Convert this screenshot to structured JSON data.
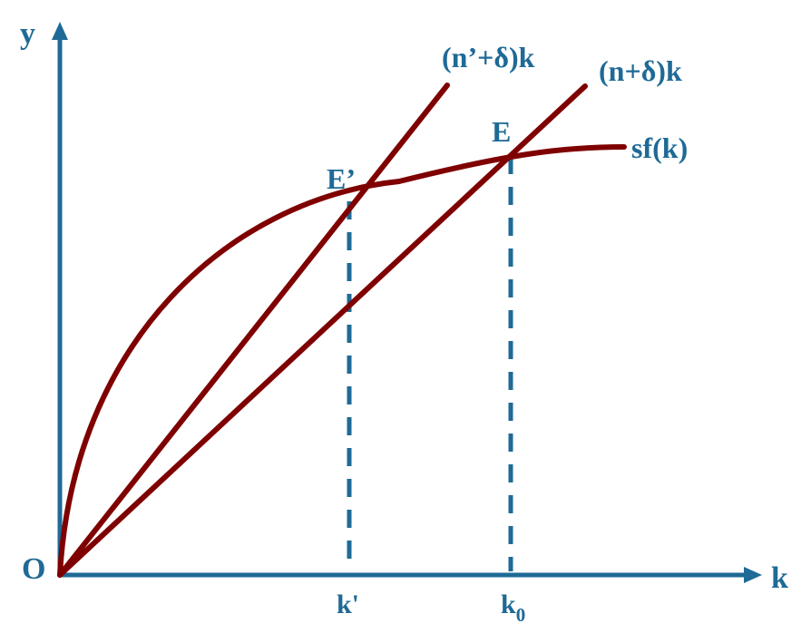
{
  "colors": {
    "axis": "#1f6a96",
    "curve": "#7f0000",
    "label_blue": "#1f6a96",
    "label_red": "#7f0000",
    "background": "#ffffff"
  },
  "axes": {
    "y_label": "y",
    "x_label": "k",
    "origin_label": "O"
  },
  "curves": {
    "production": {
      "label": "sf(k)"
    },
    "steep_line": {
      "label": "(n’+δ)k"
    },
    "flat_line": {
      "label": "(n+δ)k"
    }
  },
  "points": {
    "e_prime": {
      "label": "E’"
    },
    "e": {
      "label": "E"
    }
  },
  "ticks": {
    "k_prime": {
      "label": "k'"
    },
    "k0": {
      "label": "k",
      "subscript": "0"
    }
  }
}
